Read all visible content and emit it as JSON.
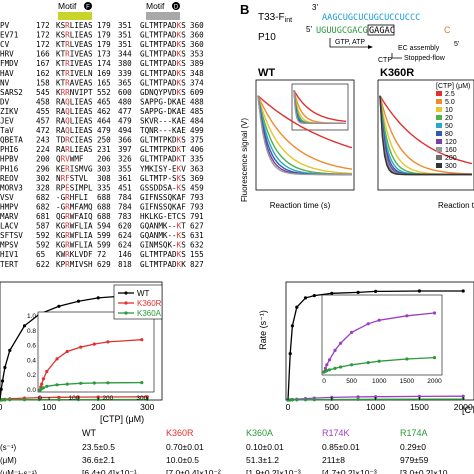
{
  "panelA": {
    "motif_labels": [
      "Motif",
      "Motif"
    ],
    "motif_badges": [
      "F",
      "D"
    ],
    "rows": [
      {
        "name": "PV",
        "a1": "172",
        "s1": "KSRLIEAS",
        "a2": "179",
        "b1": "351",
        "s2": "GLTMTPADKS",
        "b2": "360"
      },
      {
        "name": "EV71",
        "a1": "172",
        "s1": "KSRLIEAS",
        "a2": "179",
        "b1": "351",
        "s2": "GLTMTPADKS",
        "b2": "360"
      },
      {
        "name": "CV",
        "a1": "172",
        "s1": "KTRLVEAS",
        "a2": "179",
        "b1": "351",
        "s2": "GLTMTPADKS",
        "b2": "360"
      },
      {
        "name": "HRV",
        "a1": "166",
        "s1": "KTRIVEAS",
        "a2": "173",
        "b1": "344",
        "s2": "GLTMTPADKS",
        "b2": "353"
      },
      {
        "name": "FMDV",
        "a1": "167",
        "s1": "KTRIVEAS",
        "a2": "174",
        "b1": "380",
        "s2": "GLTMTPADKS",
        "b2": "389"
      },
      {
        "name": "HAV",
        "a1": "162",
        "s1": "KTRIVELN",
        "a2": "169",
        "b1": "339",
        "s2": "GLTMTPADKS",
        "b2": "348"
      },
      {
        "name": "NV",
        "a1": "158",
        "s1": "KTRAVEAS",
        "a2": "165",
        "b1": "365",
        "s2": "GLTMTPADKS",
        "b2": "374"
      },
      {
        "name": "SARS2",
        "a1": "545",
        "s1": "KRRNVIPT",
        "a2": "552",
        "b1": "600",
        "s2": "GDNQYPVDKS",
        "b2": "609"
      },
      {
        "name": "DV",
        "a1": "458",
        "s1": "RAQLIEAS",
        "a2": "465",
        "b1": "480",
        "s2": "SAPPG-DKAE",
        "b2": "488"
      },
      {
        "name": "ZIKV",
        "a1": "455",
        "s1": "RAQLIEAS",
        "a2": "462",
        "b1": "477",
        "s2": "SAPPG-DKAE",
        "b2": "485"
      },
      {
        "name": "JEV",
        "a1": "457",
        "s1": "RAQLIEAS",
        "a2": "464",
        "b1": "479",
        "s2": "SKVR---KAE",
        "b2": "484"
      },
      {
        "name": "TaV",
        "a1": "472",
        "s1": "RAQLIEAS",
        "a2": "479",
        "b1": "494",
        "s2": "TQNR---KAE",
        "b2": "499"
      },
      {
        "name": "QBETA",
        "a1": "243",
        "s1": "TDRCIEAS",
        "a2": "250",
        "b1": "366",
        "s2": "GLTMTPKDKS",
        "b2": "375"
      },
      {
        "name": "PHI6",
        "a1": "224",
        "s1": "RARLIEAS",
        "a2": "231",
        "b1": "397",
        "s2": "GLTMTPKDKT",
        "b2": "406"
      },
      {
        "name": "HPBV",
        "a1": "200",
        "s1": "QRVWMF",
        "a2": "206",
        "b1": "326",
        "s2": "GLTMTPADKT",
        "b2": "335"
      },
      {
        "name": "PH16",
        "a1": "296",
        "s1": "KERISMVG",
        "a2": "303",
        "b1": "355",
        "s2": "YMKISY-EKV",
        "b2": "363"
      },
      {
        "name": "REOV",
        "a1": "302",
        "s1": "NRFSTVL",
        "a2": "308",
        "b1": "361",
        "s2": "GLTMTP-SKS",
        "b2": "369"
      },
      {
        "name": "MORV3",
        "a1": "328",
        "s1": "RPESIMPL",
        "a2": "335",
        "b1": "451",
        "s2": "GSSDDSA-KS",
        "b2": "459"
      },
      {
        "name": "VSV",
        "a1": "682",
        "s1": "-GRHFLI",
        "a2": "688",
        "b1": "784",
        "s2": "GIFNSSQKAF",
        "b2": "793"
      },
      {
        "name": "HMPV",
        "a1": "682",
        "s1": "-GRMFAMQ",
        "a2": "688",
        "b1": "784",
        "s2": "GIFNSSQKAF",
        "b2": "793"
      },
      {
        "name": "MARV",
        "a1": "681",
        "s1": "QGRWFAIQ",
        "a2": "688",
        "b1": "783",
        "s2": "HKLKG-ETCS",
        "b2": "791"
      },
      {
        "name": "LACV",
        "a1": "587",
        "s1": "KGRWFLIA",
        "a2": "594",
        "b1": "620",
        "s2": "GQANMK--KT",
        "b2": "627"
      },
      {
        "name": "SFTSV",
        "a1": "592",
        "s1": "KGRWFLIA",
        "a2": "599",
        "b1": "624",
        "s2": "GQANMK--KS",
        "b2": "631"
      },
      {
        "name": "MPSV",
        "a1": "592",
        "s1": "KGRWFLIA",
        "a2": "599",
        "b1": "624",
        "s2": "GINMSQK-KS",
        "b2": "632"
      },
      {
        "name": "HIV1",
        "a1": "65",
        "s1": "KWRKLVDF",
        "a2": "72",
        "b1": "146",
        "s2": "GLTMTPADKS",
        "b2": "155"
      },
      {
        "name": "TERT",
        "a1": "622",
        "s1": "KPRMIVSH",
        "a2": "629",
        "b1": "818",
        "s2": "GLTMTPADKK",
        "b2": "827"
      }
    ]
  },
  "panelB": {
    "letter": "B",
    "construct": "T33-F",
    "construct_sub": "int",
    "complex": "P10",
    "three_prime": "3'",
    "five_prime": "5'",
    "top_strand": "AAGCUGCUCUGCUCCUCCC",
    "bottom_strand": "UGUUGCGACG",
    "boxed": "GAGAC",
    "tail_letter": "C",
    "five_prime_right": "5'",
    "step1": "GTP, ATP",
    "step2": "EC assembly",
    "step3": "CTP",
    "step4": "Stopped-flow",
    "wt_title": "WT",
    "k360r_title": "K360R",
    "legend_title": "[CTP] (μM)",
    "legend_values": [
      "2.5",
      "5.0",
      "10",
      "20",
      "50",
      "80",
      "120",
      "160"
    ],
    "legend_values_k360r": [
      "2.5",
      "5.0",
      "10",
      "20",
      "50",
      "80",
      "120",
      "160",
      "200",
      "300"
    ],
    "ylabel": "Fluorescence signal (V)",
    "xlabel": "Reaction time (s)",
    "colors": [
      "#e0312f",
      "#f08a2c",
      "#e8c52a",
      "#4db34a",
      "#2aa7c9",
      "#2e5db0",
      "#7b3fa0",
      "#9a9a9a",
      "#6d6d6d",
      "#333333"
    ]
  },
  "chart_data": [
    {
      "type": "line",
      "title": "",
      "xlabel": "[CTP] (μM)",
      "ylabel": "",
      "x": [
        0,
        2.5,
        5,
        10,
        20,
        50,
        80,
        120,
        160,
        200,
        300
      ],
      "series": [
        {
          "name": "WT",
          "values": [
            0,
            2.3,
            4.1,
            7.0,
            10.7,
            16.0,
            18.5,
            20.2,
            21.3,
            22.0,
            22.8
          ]
        },
        {
          "name": "K360R",
          "values": [
            0,
            0.04,
            0.08,
            0.15,
            0.25,
            0.42,
            0.52,
            0.58,
            0.62,
            0.65,
            0.68
          ]
        },
        {
          "name": "K360A",
          "values": [
            0,
            0.01,
            0.02,
            0.03,
            0.05,
            0.07,
            0.08,
            0.09,
            0.095,
            0.097,
            0.1
          ]
        }
      ],
      "xticks": [
        "0",
        "100",
        "200",
        "300"
      ],
      "inset_yticks": [
        "0.0",
        "0.2",
        "0.4",
        "0.6",
        "0.8",
        "1.0"
      ],
      "inset_xticks": [
        "0",
        "100",
        "200",
        "300"
      ],
      "legend": "top-right"
    },
    {
      "type": "line",
      "title": "",
      "xlabel": "[CTP] (μM)",
      "ylabel": "Rate (s⁻¹)",
      "x": [
        0,
        25,
        50,
        100,
        200,
        300,
        500,
        800,
        1000,
        1500,
        2000
      ],
      "series": [
        {
          "name": "",
          "values": [
            0,
            10,
            16,
            20,
            22,
            22.5,
            23,
            23.2,
            23.4,
            23.5,
            23.5
          ]
        },
        {
          "name": "",
          "values": [
            0,
            0.05,
            0.1,
            0.17,
            0.3,
            0.4,
            0.55,
            0.67,
            0.72,
            0.78,
            0.82
          ]
        },
        {
          "name": "",
          "values": [
            0,
            0.01,
            0.02,
            0.03,
            0.05,
            0.07,
            0.1,
            0.13,
            0.15,
            0.18,
            0.2
          ]
        }
      ],
      "xticks": [
        "0",
        "500",
        "1000",
        "1500",
        "2000"
      ],
      "inset_xticks": [
        "0",
        "500",
        "1000",
        "1500",
        "2000"
      ],
      "legend": "top-right"
    }
  ],
  "table": {
    "headers": [
      "WT",
      "K360R",
      "K360A",
      "R174K",
      "R174A"
    ],
    "header_colors": [
      "#000000",
      "#e0312f",
      "#2a9a3a",
      "#9b3fbf",
      "#2a9a3a"
    ],
    "row_labels": [
      "k",
      "K",
      "k"
    ],
    "row_suffixes": [
      "(s⁻¹)",
      "(μM)",
      "(μM⁻¹·s⁻¹)"
    ],
    "rows": [
      [
        "23.5±0.5",
        "0.70±0.01",
        "0.10±0.01",
        "0.85±0.01",
        "0.29±0"
      ],
      [
        "36.6±2.1",
        "10.0±0.5",
        "51.3±1.2",
        "211±8",
        "979±59"
      ],
      [
        "[6.4±0.4]×10⁻¹",
        "[7.0±0.4]×10⁻²",
        "[1.9±0.2]×10⁻³",
        "[4.7±0.2]×10⁻³",
        "[3.0±0.2]×10"
      ]
    ]
  }
}
